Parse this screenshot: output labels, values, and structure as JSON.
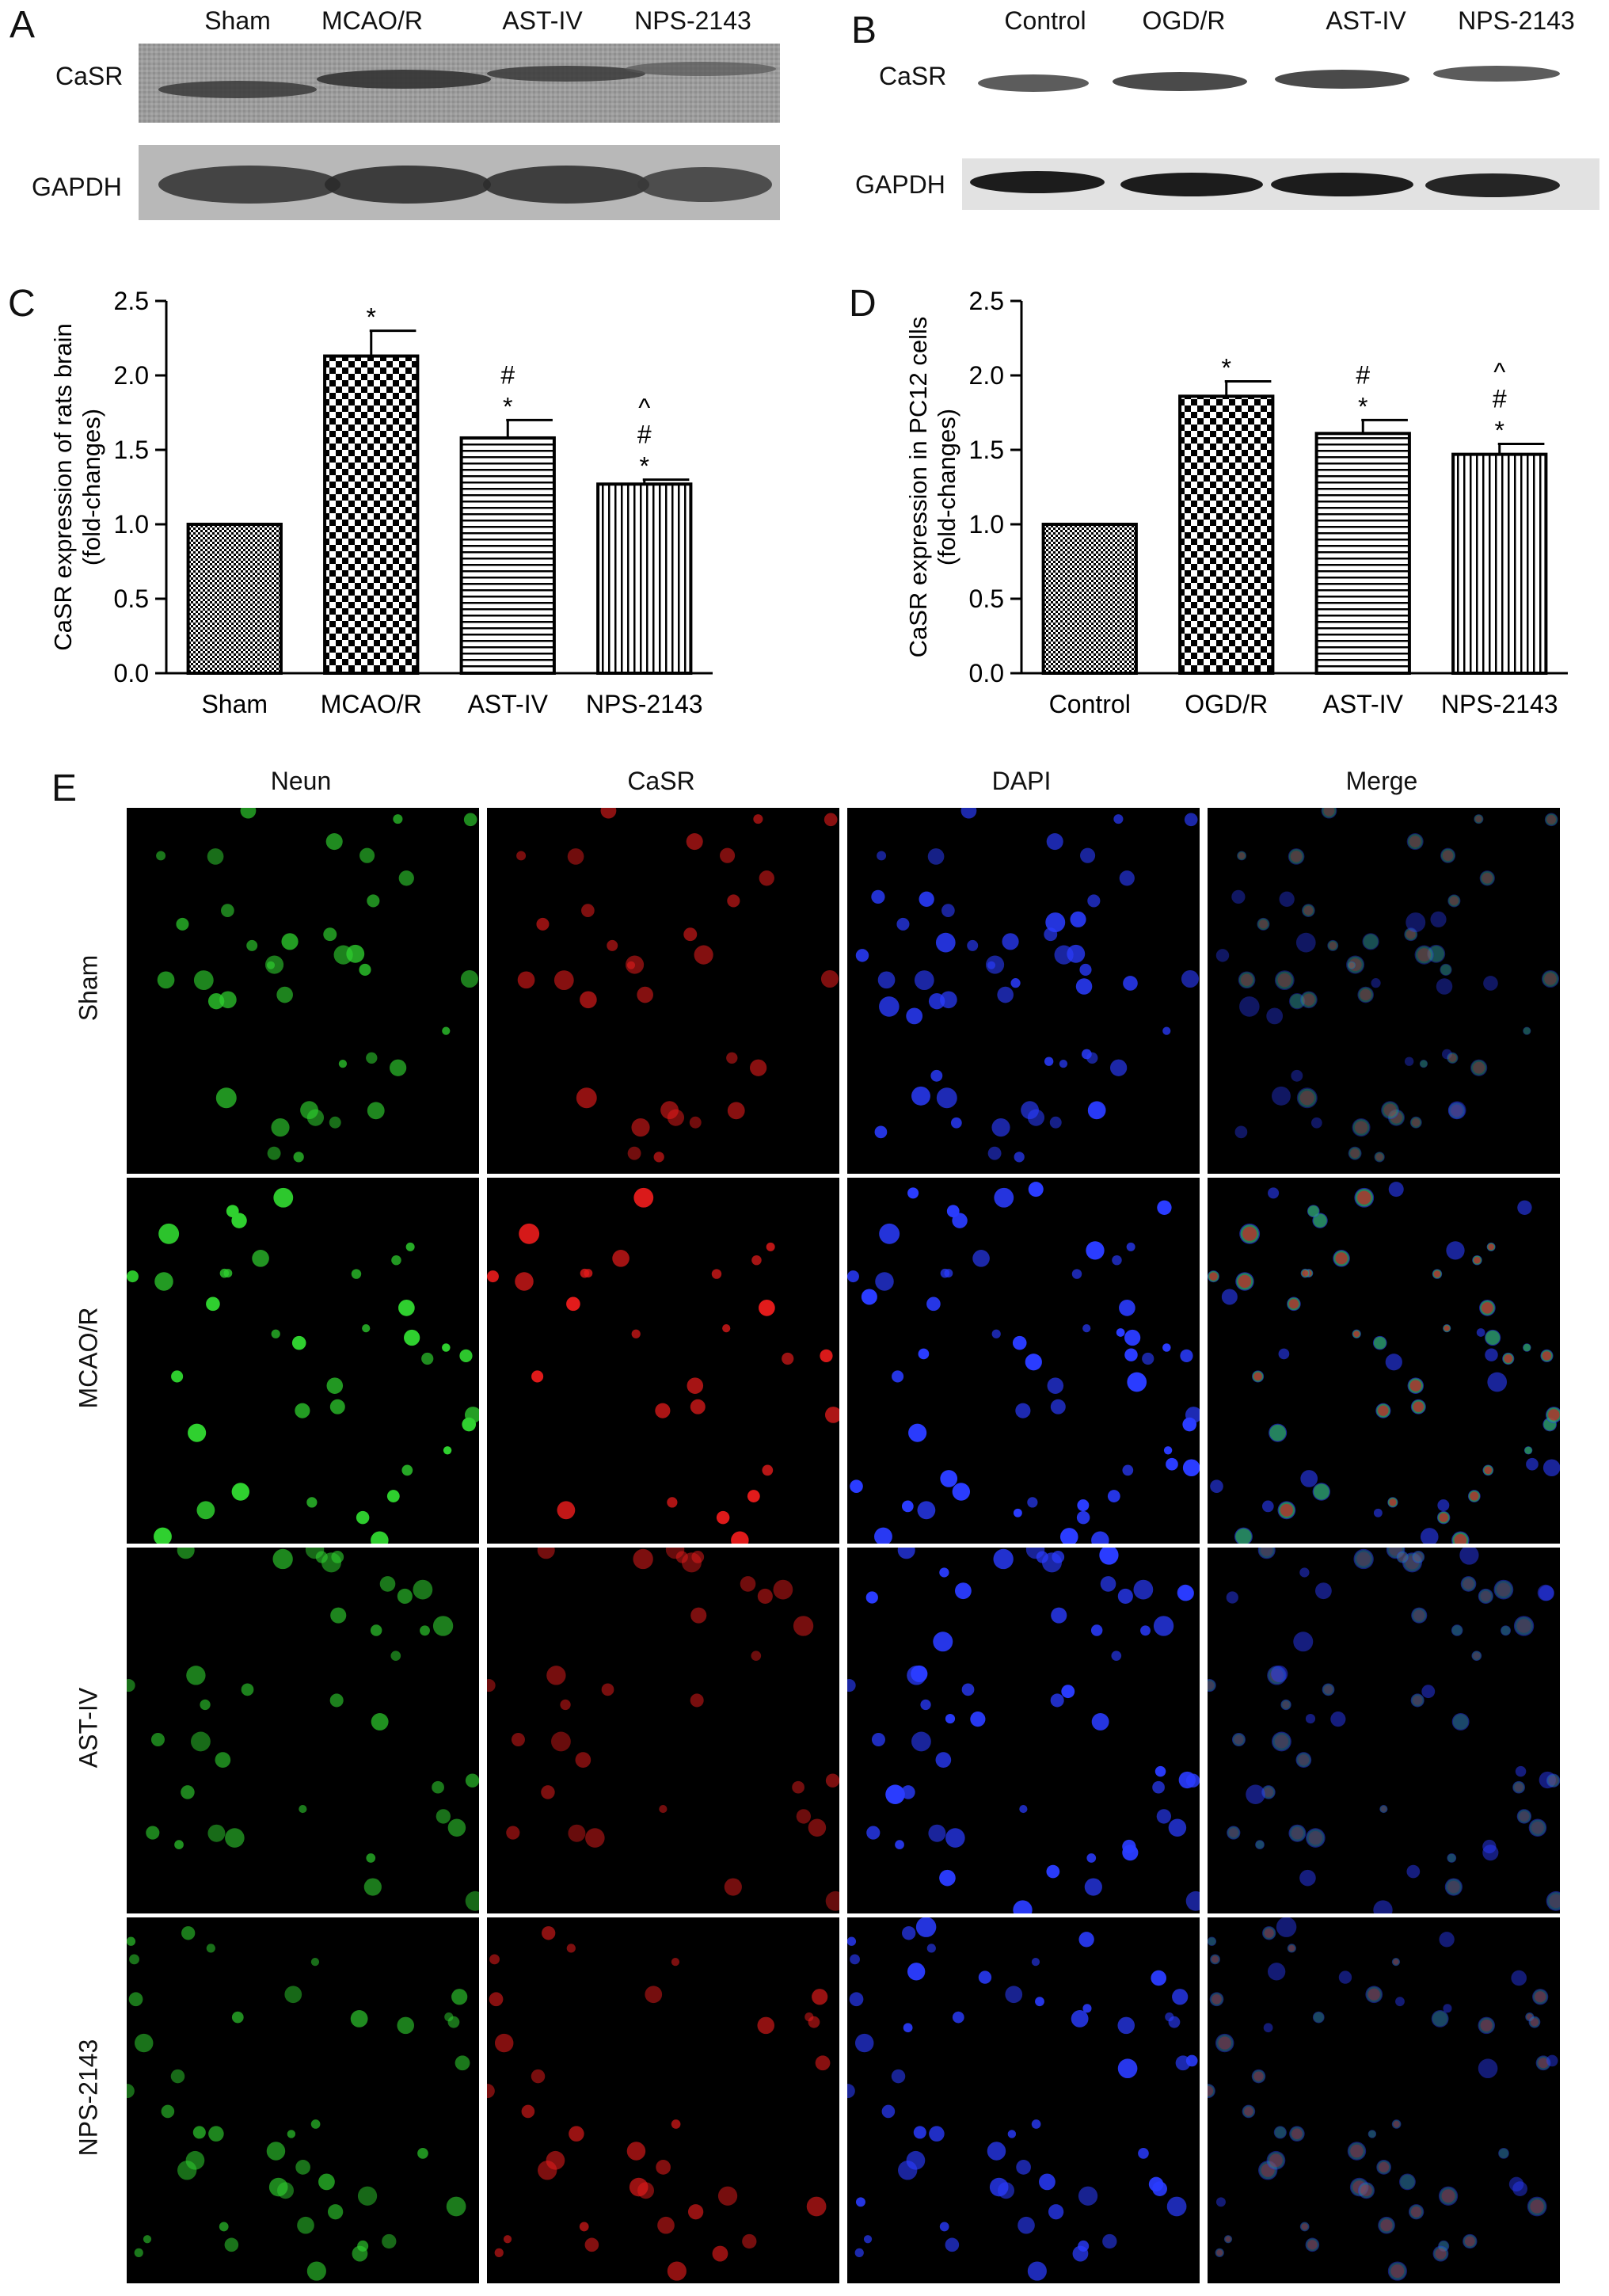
{
  "panels": {
    "A": {
      "letter": "A",
      "lanes": [
        "Sham",
        "MCAO/R",
        "AST-IV",
        "NPS-2143"
      ],
      "rows": [
        "CaSR",
        "GAPDH"
      ]
    },
    "B": {
      "letter": "B",
      "lanes": [
        "Control",
        "OGD/R",
        "AST-IV",
        "NPS-2143"
      ],
      "rows": [
        "CaSR",
        "GAPDH"
      ]
    },
    "C": {
      "letter": "C"
    },
    "D": {
      "letter": "D"
    },
    "E": {
      "letter": "E",
      "columns": [
        "Neun",
        "CaSR",
        "DAPI",
        "Merge"
      ],
      "rows": [
        "Sham",
        "MCAO/R",
        "AST-IV",
        "NPS-2143"
      ]
    }
  },
  "chart_data": [
    {
      "type": "bar",
      "panel": "C",
      "ylabel": "CaSR expression of rats brain (fold-changes)",
      "ylabel_lines": [
        "CaSR expression of rats brain",
        "(fold-changes)"
      ],
      "categories": [
        "Sham",
        "MCAO/R",
        "AST-IV",
        "NPS-2143"
      ],
      "values": [
        1.0,
        2.13,
        1.58,
        1.27
      ],
      "errors": [
        0.0,
        0.17,
        0.12,
        0.03
      ],
      "annotations": [
        [],
        [
          "*"
        ],
        [
          "#",
          "*"
        ],
        [
          "^",
          "#",
          "*"
        ]
      ],
      "patterns": [
        "fine-check",
        "coarse-check",
        "horizontal-lines",
        "vertical-lines"
      ],
      "ylim": [
        0,
        2.5
      ],
      "yticks": [
        "0.0",
        "0.5",
        "1.0",
        "1.5",
        "2.0",
        "2.5"
      ]
    },
    {
      "type": "bar",
      "panel": "D",
      "ylabel": "CaSR expression in PC12 cells (fold-changes)",
      "ylabel_lines": [
        "CaSR expression in PC12 cells",
        "(fold-changes)"
      ],
      "categories": [
        "Control",
        "OGD/R",
        "AST-IV",
        "NPS-2143"
      ],
      "values": [
        1.0,
        1.86,
        1.61,
        1.47
      ],
      "errors": [
        0.0,
        0.1,
        0.09,
        0.07
      ],
      "annotations": [
        [],
        [
          "*"
        ],
        [
          "#",
          "*"
        ],
        [
          "^",
          "#",
          "*"
        ]
      ],
      "patterns": [
        "fine-check",
        "coarse-check",
        "horizontal-lines",
        "vertical-lines"
      ],
      "ylim": [
        0,
        2.5
      ],
      "yticks": [
        "0.0",
        "0.5",
        "1.0",
        "1.5",
        "2.0",
        "2.5"
      ]
    }
  ],
  "micrograph_colors": {
    "Neun": "#2fd02f",
    "CaSR": "#e31b1b",
    "DAPI": "#2a3cff"
  },
  "row_intensity": {
    "Sham": {
      "Neun": 0.55,
      "CaSR": 0.45,
      "DAPI": 0.55
    },
    "MCAO/R": {
      "Neun": 1.0,
      "CaSR": 1.0,
      "DAPI": 0.85
    },
    "AST-IV": {
      "Neun": 0.45,
      "CaSR": 0.3,
      "DAPI": 0.7
    },
    "NPS-2143": {
      "Neun": 0.45,
      "CaSR": 0.5,
      "DAPI": 0.65
    }
  }
}
